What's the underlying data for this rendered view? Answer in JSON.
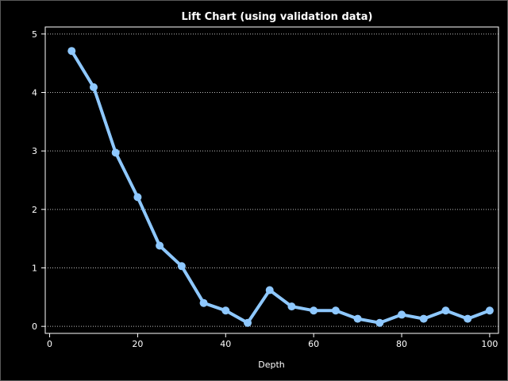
{
  "chart_data": {
    "type": "line",
    "title": "Lift Chart (using validation data)",
    "xlabel": "Depth",
    "ylabel": "",
    "xlim": [
      -1,
      102
    ],
    "ylim": [
      -0.12,
      5.12
    ],
    "xticks": [
      0,
      20,
      40,
      60,
      80,
      100
    ],
    "yticks": [
      0,
      1,
      2,
      3,
      4,
      5
    ],
    "grid": "horizontal dotted",
    "series": [
      {
        "color": "#8ec8ff",
        "markers": true,
        "x": [
          5,
          10,
          15,
          20,
          25,
          30,
          35,
          40,
          45,
          50,
          55,
          60,
          65,
          70,
          75,
          80,
          85,
          90,
          95,
          100
        ],
        "y": [
          4.71,
          4.09,
          2.97,
          2.21,
          1.38,
          1.03,
          0.4,
          0.27,
          0.06,
          0.62,
          0.34,
          0.27,
          0.27,
          0.13,
          0.06,
          0.2,
          0.13,
          0.27,
          0.13,
          0.27
        ]
      }
    ]
  }
}
